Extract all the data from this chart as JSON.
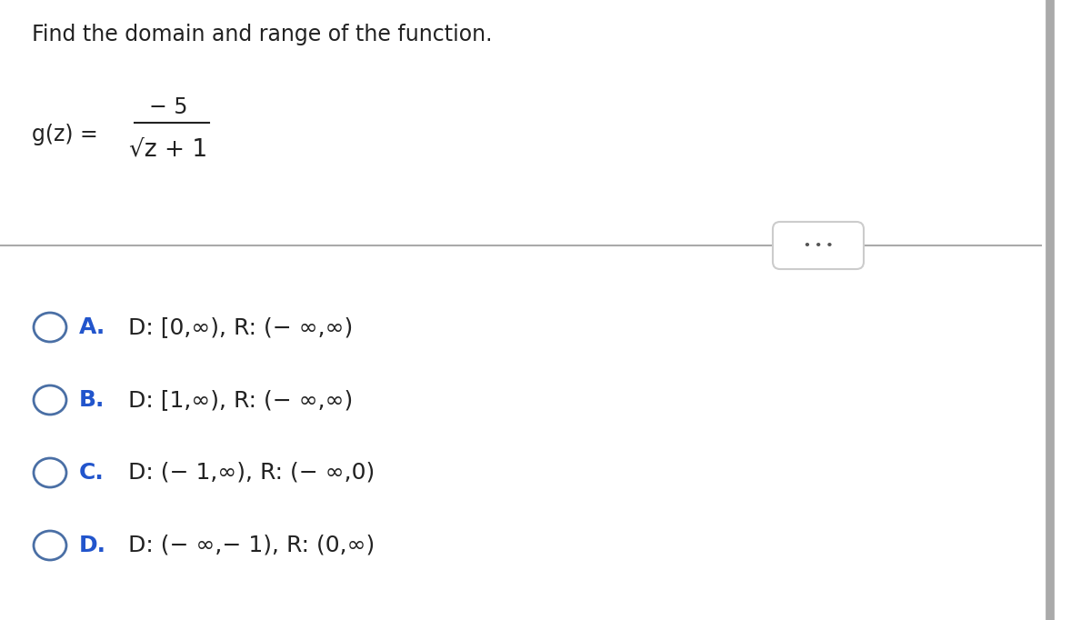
{
  "background_color": "#ffffff",
  "title_text": "Find the domain and range of the function.",
  "title_fontsize": 17,
  "title_color": "#222222",
  "function_label": "g(z) =",
  "function_fontsize": 17,
  "numerator": "− 5",
  "denominator": "√z + 1",
  "options": [
    {
      "letter": "A.",
      "text": "  D: [0,∞), R: (− ∞,∞)"
    },
    {
      "letter": "B.",
      "text": "  D: [1,∞), R: (− ∞,∞)"
    },
    {
      "letter": "C.",
      "text": "  D: (− 1,∞), R: (− ∞,0)"
    },
    {
      "letter": "D.",
      "text": "  D: (− ∞,− 1), R: (0,∞)"
    }
  ],
  "option_fontsize": 18,
  "circle_color": "#4a6fa5",
  "letter_color": "#2255cc",
  "text_color": "#222222",
  "sidebar_color": "#aaaaaa",
  "dots_button_color": "#cccccc"
}
